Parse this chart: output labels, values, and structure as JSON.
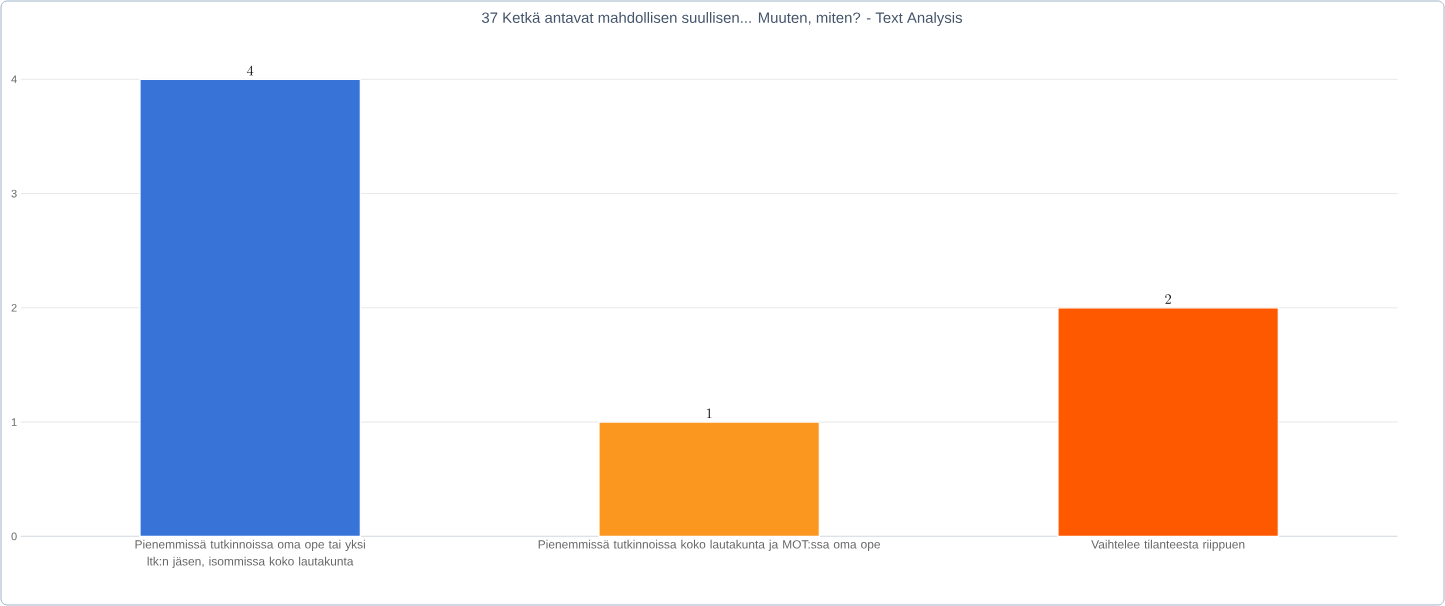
{
  "chart_data": {
    "type": "bar",
    "title": "37 Ketkä antavat mahdollisen suullisen... Muuten, miten? - Text Analysis",
    "categories": [
      "Pienemmissä tutkinnoissa oma ope tai yksi ltk:n jäsen, isommissa koko lautakunta",
      "Pienemmissä tutkinnoissa koko lautakunta ja MOT:ssa oma ope",
      "Vaihtelee tilanteesta riippuen"
    ],
    "values": [
      4,
      1,
      2
    ],
    "colors": [
      "#3874d8",
      "#fb961f",
      "#ff5900"
    ],
    "ylim": [
      0,
      4
    ],
    "yticks": [
      0,
      1,
      2,
      3,
      4
    ],
    "grid": "y",
    "data_labels": true
  }
}
